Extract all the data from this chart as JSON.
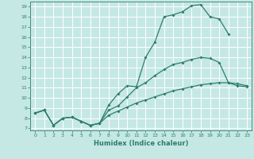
{
  "xlabel": "Humidex (Indice chaleur)",
  "line_color": "#2e7d6e",
  "bg_color": "#c5e8e5",
  "grid_color": "#ffffff",
  "xlim": [
    -0.5,
    23.5
  ],
  "ylim": [
    6.8,
    19.5
  ],
  "xticks": [
    0,
    1,
    2,
    3,
    4,
    5,
    6,
    7,
    8,
    9,
    10,
    11,
    12,
    13,
    14,
    15,
    16,
    17,
    18,
    19,
    20,
    21,
    22,
    23
  ],
  "yticks": [
    7,
    8,
    9,
    10,
    11,
    12,
    13,
    14,
    15,
    16,
    17,
    18,
    19
  ],
  "curves": [
    {
      "x": [
        0,
        1,
        2,
        3,
        4,
        5,
        6,
        7,
        8,
        9,
        10,
        11,
        12,
        13,
        14,
        15,
        16,
        17,
        18,
        19,
        20,
        21
      ],
      "y": [
        8.5,
        8.8,
        7.3,
        8.0,
        8.1,
        7.7,
        7.3,
        7.5,
        9.3,
        10.4,
        11.2,
        11.1,
        14.0,
        15.5,
        18.0,
        18.2,
        18.5,
        19.1,
        19.2,
        18.0,
        17.8,
        16.3
      ]
    },
    {
      "x": [
        0,
        1,
        2,
        3,
        4,
        5,
        6,
        7,
        8,
        9,
        10,
        11,
        12,
        13,
        14,
        15,
        16,
        17,
        18,
        19,
        20,
        21,
        22,
        23
      ],
      "y": [
        8.5,
        8.8,
        7.3,
        8.0,
        8.1,
        7.7,
        7.3,
        7.5,
        8.8,
        9.2,
        10.1,
        11.0,
        11.5,
        12.2,
        12.8,
        13.3,
        13.5,
        13.8,
        14.0,
        13.9,
        13.5,
        11.5,
        11.2,
        11.1
      ]
    },
    {
      "x": [
        0,
        1,
        2,
        3,
        4,
        5,
        6,
        7,
        8,
        9,
        10,
        11,
        12,
        13,
        14,
        15,
        16,
        17,
        18,
        19,
        20,
        21,
        22,
        23
      ],
      "y": [
        8.5,
        8.8,
        7.3,
        8.0,
        8.1,
        7.7,
        7.3,
        7.5,
        8.3,
        8.7,
        9.1,
        9.5,
        9.8,
        10.1,
        10.4,
        10.7,
        10.9,
        11.1,
        11.3,
        11.4,
        11.5,
        11.5,
        11.4,
        11.2
      ]
    }
  ]
}
